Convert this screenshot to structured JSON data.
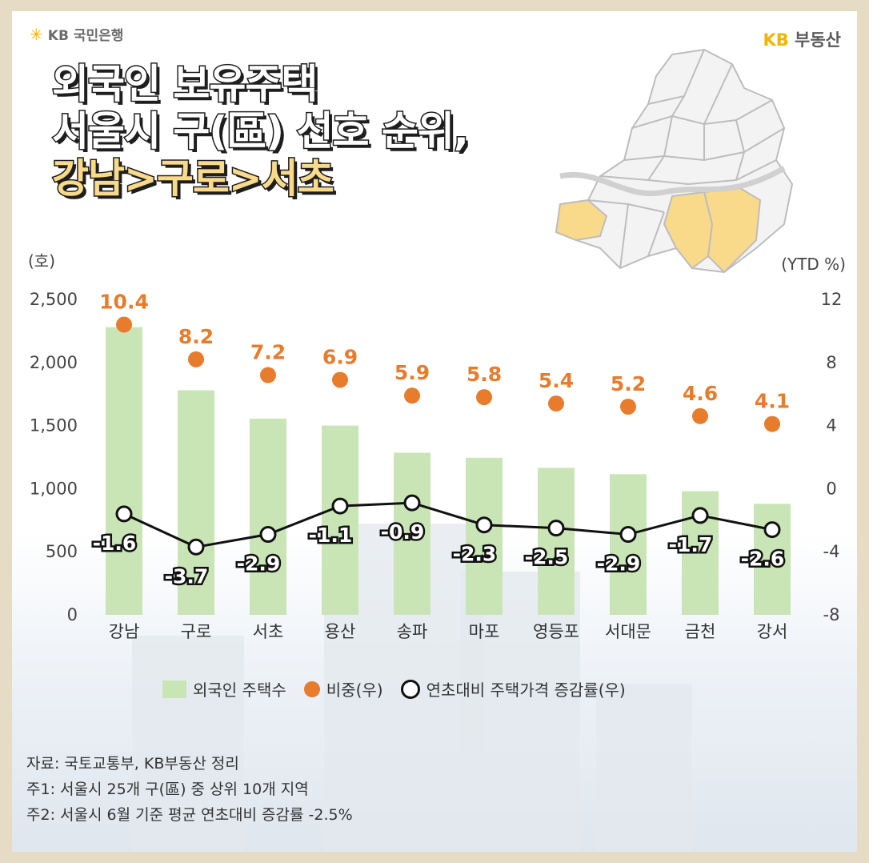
{
  "brand": {
    "logo": "KB 국민은행",
    "right_kb": "KB",
    "right_text": "부동산"
  },
  "title": {
    "line1": "외국인 보유주택",
    "line2": "서울시 구(區) 선호 순위,",
    "line3": "강남>구로>서초"
  },
  "units": {
    "left": "(호)",
    "right": "(YTD %)"
  },
  "legend": {
    "bars": "외국인 주택수",
    "share": "비중(우)",
    "change": "연초대비 주택가격 증감률(우)"
  },
  "notes": {
    "source": "자료: 국토교통부, KB부동산 정리",
    "note1": "주1: 서울시 25개 구(區) 중 상위 10개 지역",
    "note2": "주2: 서울시 6월 기준 평균 연초대비 증감률 -2.5%"
  },
  "colors": {
    "bar": "#c9e5b6",
    "share": "#e87c2d",
    "line": "#111111",
    "highlight": "#f9d98a"
  },
  "chart_data": {
    "type": "bar",
    "categories": [
      "강남",
      "구로",
      "서초",
      "용산",
      "송파",
      "마포",
      "영등포",
      "서대문",
      "금천",
      "강서"
    ],
    "series": [
      {
        "name": "외국인 주택수",
        "type": "bar",
        "axis": "left",
        "values": [
          2280,
          1780,
          1555,
          1500,
          1285,
          1245,
          1165,
          1115,
          980,
          880
        ]
      },
      {
        "name": "비중(우)",
        "type": "scatter",
        "axis": "right",
        "values": [
          10.4,
          8.2,
          7.2,
          6.9,
          5.9,
          5.8,
          5.4,
          5.2,
          4.6,
          4.1
        ]
      },
      {
        "name": "연초대비 주택가격 증감률(우)",
        "type": "line",
        "axis": "right",
        "values": [
          -1.6,
          -3.7,
          -2.9,
          -1.1,
          -0.9,
          -2.3,
          -2.5,
          -2.9,
          -1.7,
          -2.6
        ]
      }
    ],
    "yticks_left": [
      "0",
      "500",
      "1,000",
      "1,500",
      "2,000",
      "2,500"
    ],
    "yticks_right": [
      "-8",
      "-4",
      "0",
      "4",
      "8",
      "12"
    ],
    "ylim_left": [
      0,
      2500
    ],
    "ylim_right": [
      -8,
      12
    ],
    "grid": false
  }
}
